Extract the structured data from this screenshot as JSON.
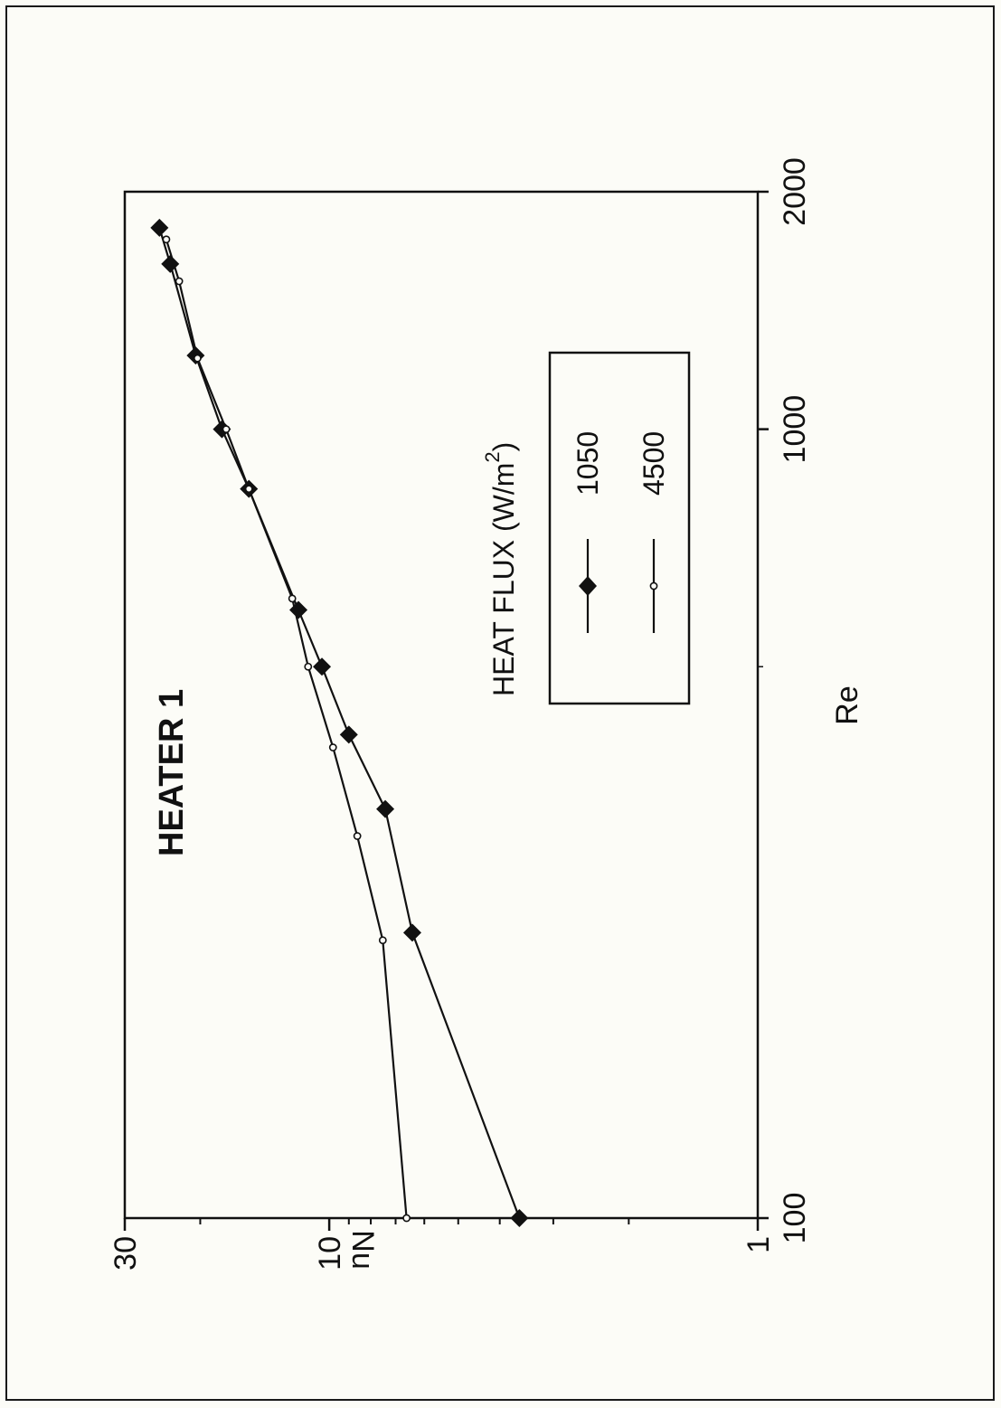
{
  "chart_data": {
    "type": "line",
    "title": "HEATER 1",
    "xlabel": "Re",
    "ylabel": "Nu",
    "x_scale": "log",
    "y_scale": "log",
    "xlim": [
      100,
      2000
    ],
    "ylim": [
      1,
      30
    ],
    "x_tick_labels": [
      "100",
      "1000",
      "2000"
    ],
    "y_tick_labels": [
      "1",
      "10",
      "30"
    ],
    "grid": false,
    "legend": {
      "title": "HEAT FLUX (W/m",
      "title_superscript": "2",
      "title_suffix": ")",
      "placement": "center-right",
      "entries": [
        "1050",
        "4500"
      ]
    },
    "series": [
      {
        "name": "1050",
        "marker": "filled-diamond",
        "x": [
          100,
          230,
          330,
          410,
          500,
          590,
          840,
          1000,
          1240,
          1620,
          1800
        ],
        "y": [
          3.6,
          6.4,
          7.4,
          9.0,
          10.4,
          11.8,
          15.4,
          17.8,
          20.5,
          23.5,
          24.9
        ]
      },
      {
        "name": "4500",
        "marker": "open-circle",
        "x": [
          100,
          225,
          305,
          395,
          500,
          610,
          840,
          1000,
          1230,
          1540,
          1740
        ],
        "y": [
          6.6,
          7.5,
          8.6,
          9.8,
          11.2,
          12.2,
          15.4,
          17.4,
          20.3,
          22.4,
          24.0
        ]
      }
    ]
  }
}
